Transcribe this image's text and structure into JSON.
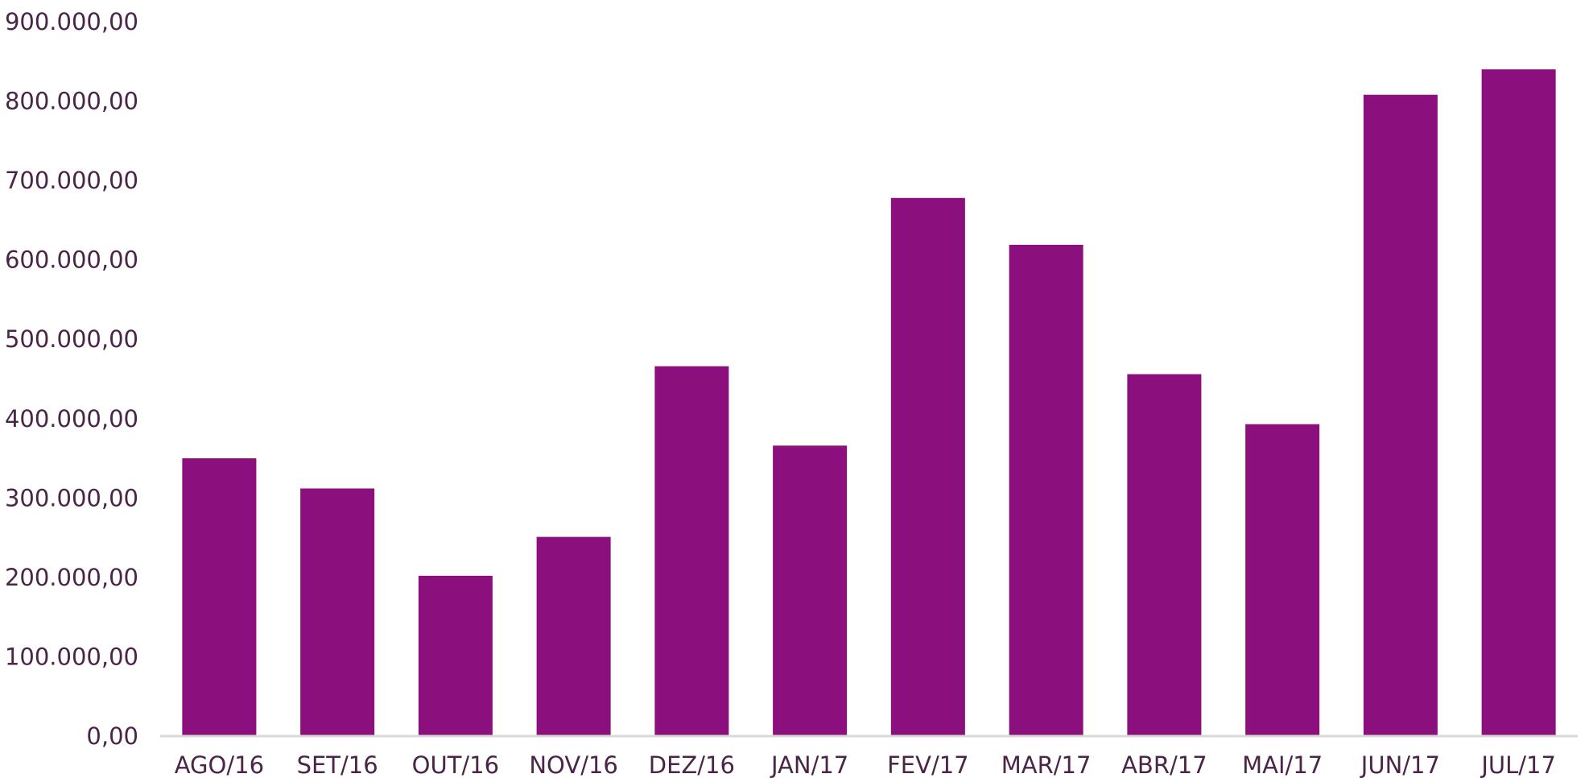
{
  "chart_data": {
    "type": "bar",
    "categories": [
      "AGO/16",
      "SET/16",
      "OUT/16",
      "NOV/16",
      "DEZ/16",
      "JAN/17",
      "FEV/17",
      "MAR/17",
      "ABR/17",
      "MAI/17",
      "JUN/17",
      "JUL/17"
    ],
    "values": [
      350000,
      312000,
      202000,
      251000,
      466000,
      366000,
      678000,
      619000,
      456000,
      393000,
      808000,
      840000
    ],
    "title": "",
    "xlabel": "",
    "ylabel": "",
    "ylim": [
      0,
      900000
    ],
    "y_ticks": [
      0,
      100000,
      200000,
      300000,
      400000,
      500000,
      600000,
      700000,
      800000,
      900000
    ],
    "y_tick_labels": [
      "0,00",
      "100.000,00",
      "200.000,00",
      "300.000,00",
      "400.000,00",
      "500.000,00",
      "600.000,00",
      "700.000,00",
      "800.000,00",
      "900.000,00"
    ],
    "grid": false,
    "legend": "none",
    "colors": {
      "bar": "#8b0f7c",
      "text": "#4b2547",
      "axis": "#d9d9d9"
    }
  }
}
